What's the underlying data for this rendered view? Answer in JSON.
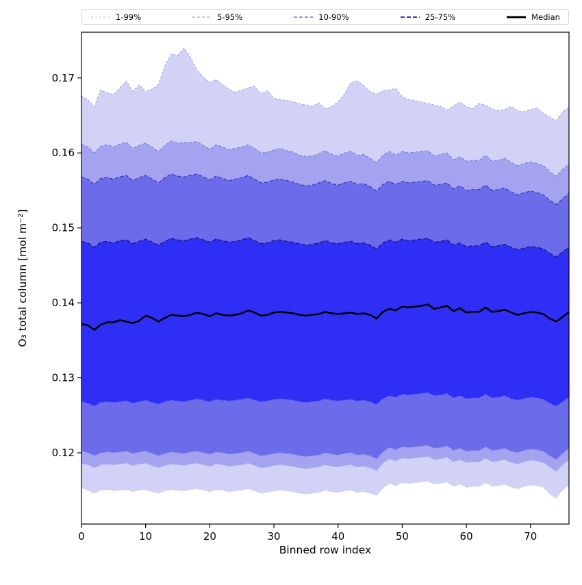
{
  "figure": {
    "background": "#ffffff"
  },
  "legend": {
    "entries": [
      {
        "label": "1-99%",
        "color": "#c6c6f0",
        "dash": "3,3",
        "width": 1.2
      },
      {
        "label": "5-95%",
        "color": "#9f9fe9",
        "dash": "4,3",
        "width": 1.2
      },
      {
        "label": "10-90%",
        "color": "#6f6fe2",
        "dash": "5,3",
        "width": 1.5
      },
      {
        "label": "25-75%",
        "color": "#3d3dcc",
        "dash": "6,3",
        "width": 2.2
      },
      {
        "label": "Median",
        "color": "#000000",
        "dash": "",
        "width": 3
      }
    ]
  },
  "chart_data": {
    "type": "area",
    "title": "",
    "xlabel": "Binned row index",
    "ylabel": "O₃ total column [mol m⁻²]",
    "xlim": [
      0,
      76
    ],
    "ylim": [
      0.1105,
      0.1761
    ],
    "xticks": [
      0,
      10,
      20,
      30,
      40,
      50,
      60,
      70
    ],
    "yticks": [
      0.12,
      0.13,
      0.14,
      0.15,
      0.16,
      0.17
    ],
    "grid": false,
    "legend_position": "top-outside",
    "x": [
      0,
      1,
      2,
      3,
      4,
      5,
      6,
      7,
      8,
      9,
      10,
      11,
      12,
      13,
      14,
      15,
      16,
      17,
      18,
      19,
      20,
      21,
      22,
      23,
      24,
      25,
      26,
      27,
      28,
      29,
      30,
      31,
      32,
      33,
      34,
      35,
      36,
      37,
      38,
      39,
      40,
      41,
      42,
      43,
      44,
      45,
      46,
      47,
      48,
      49,
      50,
      51,
      52,
      53,
      54,
      55,
      56,
      57,
      58,
      59,
      60,
      61,
      62,
      63,
      64,
      65,
      66,
      67,
      68,
      69,
      70,
      71,
      72,
      73,
      74,
      75,
      76
    ],
    "series": [
      {
        "name": "p1",
        "label": "1st percentile",
        "line_color": "#cfcff4",
        "dash": "3,3",
        "width": 0.9,
        "values": [
          0.1153,
          0.115,
          0.1146,
          0.115,
          0.1151,
          0.1149,
          0.115,
          0.1151,
          0.1148,
          0.115,
          0.1151,
          0.1148,
          0.1146,
          0.1149,
          0.1151,
          0.115,
          0.1149,
          0.1151,
          0.1152,
          0.115,
          0.1148,
          0.1151,
          0.115,
          0.1148,
          0.1149,
          0.115,
          0.1152,
          0.1149,
          0.1146,
          0.1147,
          0.1149,
          0.115,
          0.1149,
          0.1148,
          0.1146,
          0.1145,
          0.1146,
          0.1147,
          0.115,
          0.1148,
          0.1147,
          0.1149,
          0.115,
          0.1147,
          0.1148,
          0.1146,
          0.1143,
          0.1153,
          0.1159,
          0.1156,
          0.116,
          0.1159,
          0.116,
          0.1161,
          0.1162,
          0.1158,
          0.1159,
          0.1161,
          0.1155,
          0.1158,
          0.1154,
          0.1155,
          0.1155,
          0.116,
          0.1155,
          0.1156,
          0.1158,
          0.1154,
          0.1152,
          0.1155,
          0.1157,
          0.1156,
          0.1154,
          0.1145,
          0.1139,
          0.115,
          0.1157
        ]
      },
      {
        "name": "p5",
        "label": "5th percentile",
        "line_color": "#b2b2f1",
        "dash": "4,3",
        "width": 1,
        "values": [
          0.1186,
          0.1184,
          0.118,
          0.1184,
          0.1185,
          0.1184,
          0.1185,
          0.1186,
          0.1183,
          0.1185,
          0.1186,
          0.1183,
          0.118,
          0.1183,
          0.1185,
          0.1184,
          0.1183,
          0.1185,
          0.1186,
          0.1184,
          0.1182,
          0.1185,
          0.1184,
          0.1182,
          0.1183,
          0.1184,
          0.1186,
          0.1183,
          0.118,
          0.1181,
          0.1183,
          0.1184,
          0.1183,
          0.1182,
          0.118,
          0.1179,
          0.118,
          0.1181,
          0.1184,
          0.1182,
          0.1181,
          0.1183,
          0.1184,
          0.1181,
          0.1182,
          0.118,
          0.1176,
          0.1186,
          0.1192,
          0.1189,
          0.1193,
          0.1192,
          0.1193,
          0.1194,
          0.1195,
          0.1191,
          0.1192,
          0.1194,
          0.1188,
          0.1191,
          0.1187,
          0.1188,
          0.1188,
          0.1193,
          0.1188,
          0.1189,
          0.1191,
          0.1187,
          0.1185,
          0.1188,
          0.119,
          0.1189,
          0.1187,
          0.1181,
          0.1175,
          0.1184,
          0.1191
        ]
      },
      {
        "name": "p10",
        "label": "10th percentile",
        "line_color": "#8f8fee",
        "dash": "5,3",
        "width": 1,
        "values": [
          0.1202,
          0.12,
          0.1196,
          0.12,
          0.1201,
          0.12,
          0.1201,
          0.1202,
          0.1199,
          0.1201,
          0.1202,
          0.1199,
          0.1196,
          0.1199,
          0.1201,
          0.12,
          0.1199,
          0.1201,
          0.1202,
          0.12,
          0.1198,
          0.1201,
          0.12,
          0.1198,
          0.1199,
          0.12,
          0.1202,
          0.1199,
          0.1196,
          0.1197,
          0.1199,
          0.12,
          0.1199,
          0.1198,
          0.1196,
          0.1195,
          0.1196,
          0.1197,
          0.12,
          0.1198,
          0.1197,
          0.1199,
          0.12,
          0.1197,
          0.1198,
          0.1196,
          0.1192,
          0.1201,
          0.1207,
          0.1204,
          0.1208,
          0.1207,
          0.1208,
          0.1209,
          0.121,
          0.1206,
          0.1207,
          0.1209,
          0.1203,
          0.1206,
          0.1202,
          0.1203,
          0.1203,
          0.1208,
          0.1203,
          0.1204,
          0.1206,
          0.1202,
          0.12,
          0.1203,
          0.1205,
          0.1204,
          0.1202,
          0.1196,
          0.1191,
          0.1199,
          0.1206
        ]
      },
      {
        "name": "p25",
        "label": "25th percentile",
        "line_color": "#6060f0",
        "dash": "6,3",
        "width": 1.2,
        "values": [
          0.1268,
          0.1266,
          0.1262,
          0.1267,
          0.1268,
          0.1267,
          0.1268,
          0.1269,
          0.1266,
          0.1268,
          0.127,
          0.1267,
          0.1265,
          0.1268,
          0.127,
          0.1269,
          0.1268,
          0.127,
          0.1272,
          0.127,
          0.1268,
          0.1271,
          0.127,
          0.1269,
          0.127,
          0.1271,
          0.1273,
          0.127,
          0.1268,
          0.1269,
          0.1271,
          0.1272,
          0.1271,
          0.127,
          0.1268,
          0.1267,
          0.1268,
          0.1269,
          0.1272,
          0.127,
          0.1269,
          0.127,
          0.1271,
          0.1269,
          0.127,
          0.1268,
          0.1264,
          0.1272,
          0.1276,
          0.1274,
          0.1278,
          0.1277,
          0.1278,
          0.1279,
          0.128,
          0.1276,
          0.1277,
          0.1279,
          0.1273,
          0.1276,
          0.1272,
          0.1273,
          0.1273,
          0.1278,
          0.1273,
          0.1274,
          0.1276,
          0.1272,
          0.127,
          0.1272,
          0.1274,
          0.1273,
          0.1271,
          0.1266,
          0.1262,
          0.1268,
          0.1274
        ]
      },
      {
        "name": "median",
        "label": "Median",
        "line_color": "#000000",
        "dash": "",
        "width": 2.5,
        "values": [
          0.1372,
          0.137,
          0.1364,
          0.1371,
          0.1374,
          0.1374,
          0.1377,
          0.1375,
          0.1373,
          0.1376,
          0.1383,
          0.138,
          0.1375,
          0.138,
          0.1384,
          0.1383,
          0.1382,
          0.1384,
          0.1387,
          0.1385,
          0.1382,
          0.1386,
          0.1384,
          0.1383,
          0.1384,
          0.1386,
          0.139,
          0.1387,
          0.1383,
          0.1384,
          0.1387,
          0.1388,
          0.1387,
          0.1386,
          0.1384,
          0.1383,
          0.1384,
          0.1385,
          0.1388,
          0.1386,
          0.1385,
          0.1386,
          0.1387,
          0.1385,
          0.1386,
          0.1384,
          0.1379,
          0.1388,
          0.1392,
          0.139,
          0.1395,
          0.1394,
          0.1395,
          0.1396,
          0.1398,
          0.1392,
          0.1394,
          0.1396,
          0.1389,
          0.1393,
          0.1387,
          0.1388,
          0.1388,
          0.1394,
          0.1388,
          0.1389,
          0.1391,
          0.1387,
          0.1384,
          0.1386,
          0.1388,
          0.1387,
          0.1385,
          0.1379,
          0.1375,
          0.1381,
          0.1388
        ]
      },
      {
        "name": "p75",
        "label": "75th percentile",
        "line_color": "#151583",
        "dash": "6,3",
        "width": 1.3,
        "values": [
          0.1482,
          0.148,
          0.1474,
          0.1481,
          0.1482,
          0.148,
          0.1483,
          0.1484,
          0.1479,
          0.1482,
          0.1485,
          0.1481,
          0.1477,
          0.1482,
          0.1486,
          0.1484,
          0.1483,
          0.1485,
          0.1487,
          0.1484,
          0.1481,
          0.1485,
          0.1483,
          0.1481,
          0.1482,
          0.1484,
          0.1487,
          0.1483,
          0.1479,
          0.148,
          0.1483,
          0.1484,
          0.1482,
          0.1481,
          0.1479,
          0.1477,
          0.1478,
          0.148,
          0.1483,
          0.148,
          0.1479,
          0.1481,
          0.1482,
          0.1479,
          0.148,
          0.1477,
          0.1472,
          0.148,
          0.1484,
          0.1481,
          0.1485,
          0.1483,
          0.1484,
          0.1485,
          0.1486,
          0.1481,
          0.1482,
          0.1484,
          0.1477,
          0.148,
          0.1475,
          0.1476,
          0.1476,
          0.1481,
          0.1475,
          0.1476,
          0.1478,
          0.1474,
          0.1471,
          0.1473,
          0.1475,
          0.1474,
          0.1472,
          0.1466,
          0.1461,
          0.1468,
          0.1474
        ]
      },
      {
        "name": "p90",
        "label": "90th percentile",
        "line_color": "#2d2db6",
        "dash": "5,3",
        "width": 1.1,
        "values": [
          0.1568,
          0.1565,
          0.1558,
          0.1566,
          0.1567,
          0.1565,
          0.1568,
          0.157,
          0.1563,
          0.1567,
          0.157,
          0.1565,
          0.156,
          0.1567,
          0.1572,
          0.1569,
          0.1568,
          0.157,
          0.1572,
          0.1568,
          0.1564,
          0.1569,
          0.1566,
          0.1563,
          0.1565,
          0.1567,
          0.157,
          0.1565,
          0.156,
          0.1561,
          0.1564,
          0.1565,
          0.1563,
          0.1561,
          0.1558,
          0.1556,
          0.1557,
          0.156,
          0.1563,
          0.1559,
          0.1557,
          0.156,
          0.1562,
          0.1558,
          0.1559,
          0.1555,
          0.1549,
          0.1558,
          0.1562,
          0.1558,
          0.1562,
          0.156,
          0.1561,
          0.1562,
          0.1563,
          0.1557,
          0.1558,
          0.156,
          0.1552,
          0.1556,
          0.155,
          0.1551,
          0.1551,
          0.1557,
          0.155,
          0.1551,
          0.1553,
          0.1548,
          0.1544,
          0.1547,
          0.1549,
          0.1547,
          0.1544,
          0.1537,
          0.1531,
          0.1539,
          0.1546
        ]
      },
      {
        "name": "p95",
        "label": "95th percentile",
        "line_color": "#7474da",
        "dash": "4,3",
        "width": 1,
        "values": [
          0.1612,
          0.1608,
          0.16,
          0.1609,
          0.1611,
          0.1608,
          0.1612,
          0.1614,
          0.1606,
          0.161,
          0.1613,
          0.1608,
          0.1602,
          0.161,
          0.1616,
          0.1613,
          0.1614,
          0.1614,
          0.1615,
          0.161,
          0.1605,
          0.1611,
          0.1608,
          0.1604,
          0.1606,
          0.1608,
          0.1611,
          0.1606,
          0.16,
          0.1601,
          0.1604,
          0.1606,
          0.1603,
          0.1601,
          0.1597,
          0.1595,
          0.1596,
          0.1599,
          0.1603,
          0.1598,
          0.1596,
          0.16,
          0.1602,
          0.1597,
          0.1598,
          0.1593,
          0.1587,
          0.1597,
          0.1602,
          0.1597,
          0.1602,
          0.16,
          0.1601,
          0.1602,
          0.1603,
          0.1596,
          0.1598,
          0.16,
          0.1591,
          0.1595,
          0.1589,
          0.159,
          0.159,
          0.1597,
          0.1589,
          0.159,
          0.1593,
          0.1587,
          0.1583,
          0.1586,
          0.1588,
          0.1586,
          0.1583,
          0.1575,
          0.1569,
          0.1578,
          0.1585
        ]
      },
      {
        "name": "p99",
        "label": "99th percentile",
        "line_color": "#9c9ce4",
        "dash": "3,3",
        "width": 1,
        "values": [
          0.1676,
          0.1671,
          0.1662,
          0.1684,
          0.168,
          0.1678,
          0.1687,
          0.1696,
          0.1682,
          0.1691,
          0.1682,
          0.1685,
          0.1691,
          0.1716,
          0.1732,
          0.173,
          0.174,
          0.1727,
          0.1711,
          0.1701,
          0.1694,
          0.1698,
          0.1691,
          0.1685,
          0.1681,
          0.1684,
          0.1687,
          0.1689,
          0.1679,
          0.1683,
          0.1673,
          0.1671,
          0.167,
          0.1668,
          0.1666,
          0.1664,
          0.1662,
          0.1667,
          0.1659,
          0.1662,
          0.1668,
          0.1679,
          0.1694,
          0.1696,
          0.169,
          0.1682,
          0.1678,
          0.1683,
          0.1684,
          0.1686,
          0.1675,
          0.1671,
          0.167,
          0.1668,
          0.1666,
          0.1664,
          0.1662,
          0.1657,
          0.1663,
          0.1668,
          0.1662,
          0.1659,
          0.1666,
          0.1664,
          0.1659,
          0.1656,
          0.1658,
          0.1662,
          0.1656,
          0.1655,
          0.1658,
          0.166,
          0.1653,
          0.1648,
          0.1643,
          0.1655,
          0.166
        ]
      }
    ],
    "bands": [
      {
        "name": "band-1-99",
        "upper": "p99",
        "lower": "p1",
        "fill": "#d2d2f6"
      },
      {
        "name": "band-5-95",
        "upper": "p95",
        "lower": "p5",
        "fill": "#a3a3ef"
      },
      {
        "name": "band-10-90",
        "upper": "p90",
        "lower": "p10",
        "fill": "#6c6ceb"
      },
      {
        "name": "band-25-75",
        "upper": "p75",
        "lower": "p25",
        "fill": "#2e2ef5"
      }
    ]
  }
}
